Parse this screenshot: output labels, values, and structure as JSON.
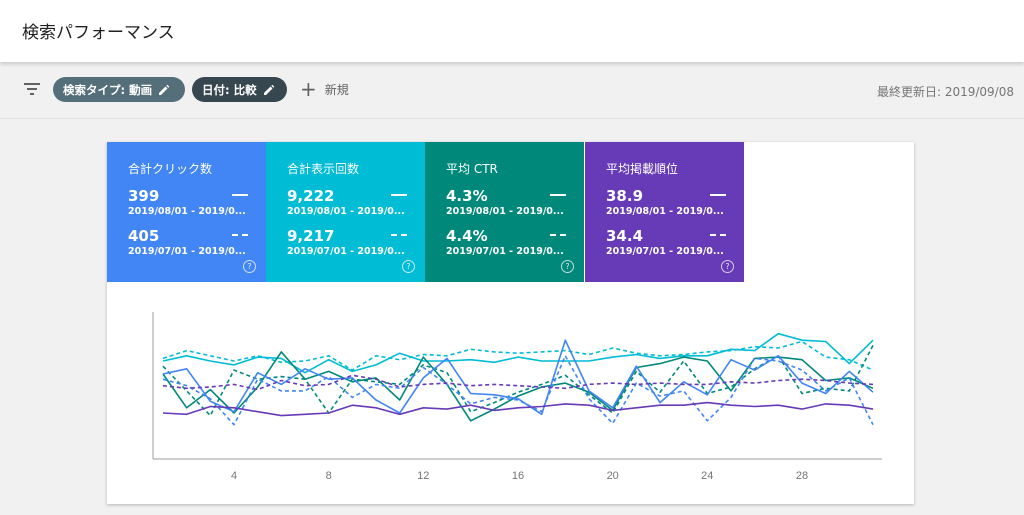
{
  "header": {
    "title": "検索パフォーマンス"
  },
  "toolbar": {
    "chip_type": "検索タイプ: 動画",
    "chip_date": "日付: 比較",
    "new_label": "新規",
    "updated": "最終更新日: 2019/09/08"
  },
  "metrics": [
    {
      "label": "合計クリック数",
      "value": "399",
      "range": "2019/08/01 - 2019/0...",
      "compare_value": "405",
      "compare_range": "2019/07/01 - 2019/0...",
      "color": "#4285f4"
    },
    {
      "label": "合計表示回数",
      "value": "9,222",
      "range": "2019/08/01 - 2019/0...",
      "compare_value": "9,217",
      "compare_range": "2019/07/01 - 2019/0...",
      "color": "#00bcd4"
    },
    {
      "label": "平均 CTR",
      "value": "4.3%",
      "range": "2019/08/01 - 2019/0...",
      "compare_value": "4.4%",
      "compare_range": "2019/07/01 - 2019/0...",
      "color": "#00897b"
    },
    {
      "label": "平均掲載順位",
      "value": "38.9",
      "range": "2019/08/01 - 2019/0...",
      "compare_value": "34.4",
      "compare_range": "2019/07/01 - 2019/0...",
      "color": "#673ab7"
    }
  ],
  "chart_data": {
    "type": "line",
    "x": [
      1,
      2,
      3,
      4,
      5,
      6,
      7,
      8,
      9,
      10,
      11,
      12,
      13,
      14,
      15,
      16,
      17,
      18,
      19,
      20,
      21,
      22,
      23,
      24,
      25,
      26,
      27,
      28,
      29,
      30,
      31
    ],
    "xticks": [
      "4",
      "8",
      "12",
      "16",
      "20",
      "24",
      "28"
    ],
    "ylim": [
      0,
      100
    ],
    "grid": false,
    "series": [
      {
        "color": "#00bcd4",
        "dashed": false,
        "values": [
          70,
          74,
          70,
          67,
          73,
          72,
          61,
          71,
          62,
          67,
          76,
          70,
          70,
          71,
          69,
          73,
          70,
          70,
          70,
          73,
          75,
          72,
          74,
          74,
          79,
          78,
          91,
          86,
          85,
          68,
          86
        ]
      },
      {
        "color": "#00bcd4",
        "dashed": true,
        "values": [
          72,
          78,
          74,
          70,
          74,
          69,
          70,
          74,
          63,
          74,
          71,
          75,
          74,
          79,
          77,
          76,
          77,
          78,
          75,
          80,
          76,
          74,
          75,
          77,
          78,
          81,
          80,
          85,
          73,
          71,
          63
        ]
      },
      {
        "color": "#00897b",
        "dashed": false,
        "values": [
          60,
          34,
          48,
          30,
          50,
          77,
          56,
          62,
          54,
          57,
          40,
          73,
          52,
          24,
          33,
          43,
          50,
          53,
          46,
          32,
          65,
          68,
          73,
          70,
          47,
          72,
          73,
          71,
          55,
          57,
          49
        ]
      },
      {
        "color": "#00897b",
        "dashed": true,
        "values": [
          66,
          47,
          28,
          63,
          56,
          58,
          56,
          30,
          56,
          54,
          52,
          67,
          61,
          31,
          38,
          46,
          52,
          59,
          44,
          30,
          62,
          46,
          70,
          45,
          50,
          64,
          74,
          45,
          49,
          47,
          82
        ]
      },
      {
        "color": "#4285f4",
        "dashed": false,
        "values": [
          60,
          64,
          39,
          31,
          61,
          52,
          64,
          56,
          57,
          40,
          30,
          57,
          72,
          45,
          44,
          41,
          29,
          86,
          47,
          34,
          66,
          38,
          54,
          44,
          71,
          63,
          74,
          53,
          45,
          62,
          46
        ]
      },
      {
        "color": "#4285f4",
        "dashed": true,
        "values": [
          56,
          51,
          41,
          21,
          56,
          47,
          47,
          58,
          42,
          52,
          49,
          65,
          52,
          37,
          42,
          40,
          31,
          74,
          41,
          22,
          53,
          43,
          47,
          24,
          42,
          72,
          70,
          63,
          47,
          57,
          21
        ]
      },
      {
        "color": "#673ab7",
        "dashed": false,
        "values": [
          30,
          29,
          35,
          34,
          31,
          28,
          29,
          30,
          36,
          34,
          29,
          34,
          33,
          36,
          32,
          34,
          35,
          37,
          36,
          32,
          34,
          36,
          36,
          38,
          36,
          35,
          36,
          33,
          37,
          36,
          33
        ]
      },
      {
        "color": "#673ab7",
        "dashed": true,
        "values": [
          51,
          49,
          50,
          52,
          48,
          55,
          51,
          52,
          59,
          56,
          50,
          52,
          53,
          51,
          52,
          51,
          50,
          49,
          52,
          53,
          52,
          53,
          52,
          52,
          54,
          53,
          55,
          56,
          55,
          53,
          52
        ]
      }
    ]
  }
}
